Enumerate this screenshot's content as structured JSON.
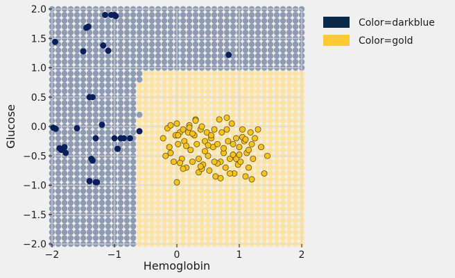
{
  "chart_data": {
    "type": "scatter",
    "xlabel": "Hemoglobin",
    "ylabel": "Glucose",
    "xlim": [
      -2,
      2
    ],
    "ylim": [
      -2,
      2
    ],
    "x_ticks": [
      -2,
      -1,
      0,
      1,
      2
    ],
    "y_ticks": [
      -2.0,
      -1.5,
      -1.0,
      -0.5,
      0.0,
      0.5,
      1.0,
      1.5,
      2.0
    ],
    "x_tick_labels": [
      "−2",
      "−1",
      "0",
      "1",
      "2"
    ],
    "y_tick_labels": [
      "−2.0",
      "−1.5",
      "−1.0",
      "−0.5",
      "0.0",
      "0.5",
      "1.0",
      "1.5",
      "2.0"
    ],
    "grid": true,
    "legend_position": "outside-top-right",
    "background_grid": {
      "step": 0.1,
      "colors": {
        "darkblue": "#8f9bb3",
        "gold": "#fde4a4"
      },
      "boundary_note": "gold region to the right of the decision boundary"
    },
    "series": [
      {
        "name": "Color=darkblue",
        "color": "#0b1f5c",
        "x": [
          -1.95,
          -1.98,
          -1.94,
          -1.88,
          -1.85,
          -1.8,
          -1.78,
          -1.6,
          -1.5,
          -1.45,
          -1.42,
          -1.4,
          -1.37,
          -1.35,
          -1.3,
          -1.3,
          -1.28,
          -1.2,
          -1.18,
          -1.15,
          -1.1,
          -1.05,
          -1.0,
          -0.98,
          -0.95,
          -0.9,
          -0.85,
          -0.75,
          -0.6,
          -1.4,
          -1.35,
          -0.95,
          -1.0,
          0.83
        ],
        "y": [
          1.44,
          -0.02,
          -0.04,
          -0.37,
          -0.4,
          -0.35,
          -0.45,
          -0.03,
          1.28,
          1.68,
          1.7,
          0.5,
          -0.55,
          -0.58,
          -0.95,
          -0.2,
          -0.95,
          0.03,
          1.38,
          1.9,
          1.29,
          1.9,
          -0.2,
          1.88,
          -0.38,
          -0.2,
          -0.2,
          -0.2,
          -0.08,
          -0.93,
          0.5,
          -0.38,
          1.9,
          1.22
        ]
      },
      {
        "name": "Color=gold",
        "color": "#f7c21b",
        "x": [
          -0.22,
          -0.18,
          -0.15,
          -0.12,
          -0.1,
          -0.05,
          -0.02,
          0.0,
          0.02,
          0.05,
          0.08,
          0.1,
          0.12,
          0.15,
          0.18,
          0.2,
          0.22,
          0.25,
          0.28,
          0.3,
          0.32,
          0.35,
          0.38,
          0.4,
          0.42,
          0.45,
          0.48,
          0.5,
          0.52,
          0.55,
          0.58,
          0.6,
          0.62,
          0.65,
          0.68,
          0.7,
          0.72,
          0.75,
          0.78,
          0.8,
          0.82,
          0.85,
          0.88,
          0.9,
          0.92,
          0.95,
          0.98,
          1.0,
          1.02,
          1.05,
          1.08,
          1.1,
          1.12,
          1.15,
          1.18,
          1.2,
          1.22,
          1.25,
          1.3,
          1.35,
          1.4,
          1.45,
          -0.1,
          0.05,
          0.15,
          0.25,
          0.35,
          0.45,
          0.55,
          0.65,
          0.75,
          0.85,
          0.95,
          1.05,
          1.15,
          0.1,
          0.3,
          0.5,
          0.7,
          0.9,
          1.1,
          0.0,
          0.2,
          0.4,
          0.6,
          0.8,
          1.0,
          1.2,
          0.02,
          0.38
        ],
        "y": [
          -0.2,
          -0.5,
          -0.03,
          -0.35,
          0.02,
          -0.6,
          -0.15,
          0.05,
          -0.3,
          -0.1,
          -0.55,
          -0.05,
          -0.25,
          -0.7,
          -0.1,
          0.02,
          -0.4,
          -0.6,
          -0.15,
          0.12,
          -0.3,
          -0.55,
          -0.05,
          0.0,
          -0.65,
          -0.25,
          -0.1,
          -0.5,
          -0.75,
          -0.2,
          -0.35,
          -0.05,
          -0.85,
          -0.3,
          0.12,
          -0.6,
          -0.1,
          -0.45,
          -0.7,
          -0.05,
          -0.25,
          -0.55,
          0.05,
          -0.3,
          -0.8,
          -0.2,
          -0.65,
          -0.35,
          -0.6,
          -0.05,
          -0.25,
          -0.85,
          -0.45,
          -0.7,
          -0.1,
          -0.3,
          -0.55,
          -0.2,
          -0.05,
          -0.35,
          -0.8,
          -0.5,
          -0.45,
          -0.62,
          -0.33,
          -0.12,
          -0.78,
          -0.42,
          -0.15,
          -0.63,
          -0.37,
          -0.8,
          -0.55,
          -0.18,
          -0.4,
          -0.72,
          0.1,
          -0.32,
          -0.88,
          -0.48,
          -0.22,
          -0.95,
          -0.02,
          -0.72,
          -0.6,
          0.15,
          -0.48,
          -0.9,
          -0.15,
          -0.68
        ]
      }
    ]
  },
  "legend": {
    "items": [
      {
        "label": "Color=darkblue",
        "color": "#0b2a4a"
      },
      {
        "label": "Color=gold",
        "color": "#ffc933"
      }
    ]
  }
}
